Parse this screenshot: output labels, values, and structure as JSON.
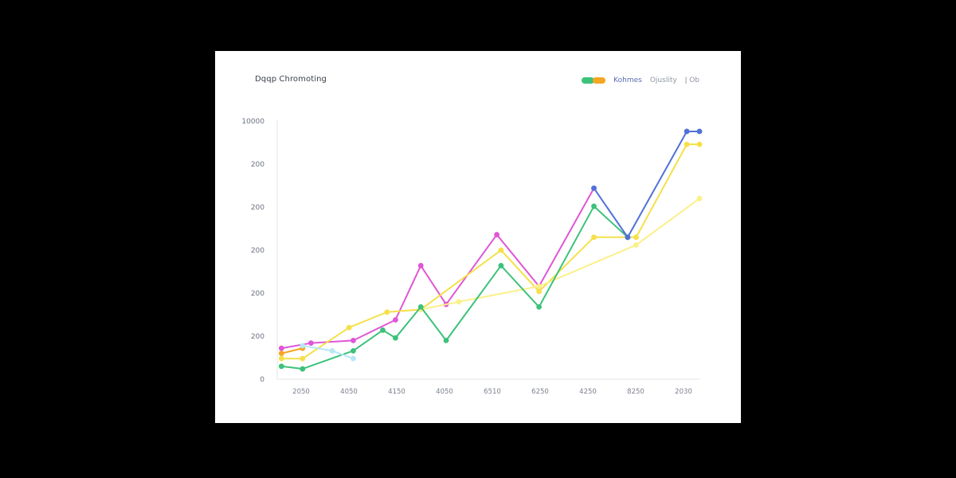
{
  "chart_data": {
    "type": "line",
    "title": "Dqqp Chromoting",
    "legend": {
      "placement": "top-right",
      "labels": [
        "Kohmes",
        "Ojuslity",
        "ǀ Ob"
      ]
    },
    "x_ticks": [
      "2050",
      "4050",
      "4150",
      "4050",
      "6510",
      "6250",
      "4250",
      "8250",
      "2030"
    ],
    "y_ticks": [
      "0",
      "200",
      "200",
      "200",
      "200",
      "200",
      "10000"
    ],
    "x_range": [
      0,
      1
    ],
    "y_range": [
      0,
      1
    ],
    "grid": false,
    "series": [
      {
        "color": "#e056d6",
        "x": [
          0.01,
          0.08,
          0.18,
          0.28,
          0.34,
          0.4,
          0.52,
          0.62,
          0.75
        ],
        "y": [
          0.12,
          0.14,
          0.15,
          0.23,
          0.44,
          0.29,
          0.56,
          0.36,
          0.74
        ]
      },
      {
        "color": "#f5a623",
        "x": [
          0.01,
          0.06
        ],
        "y": [
          0.1,
          0.12
        ]
      },
      {
        "color": "#f5e04a",
        "x": [
          0.01,
          0.06,
          0.17,
          0.26,
          0.34,
          0.53,
          0.62,
          0.75,
          0.85,
          0.97,
          1.0
        ],
        "y": [
          0.08,
          0.08,
          0.2,
          0.26,
          0.27,
          0.5,
          0.34,
          0.55,
          0.55,
          0.91,
          0.91
        ]
      },
      {
        "color": "#fbf08a",
        "x": [
          0.34,
          0.43,
          0.62,
          0.85,
          1.0
        ],
        "y": [
          0.27,
          0.3,
          0.36,
          0.52,
          0.7
        ]
      },
      {
        "color": "#3cc27a",
        "x": [
          0.01,
          0.06,
          0.18,
          0.25,
          0.28,
          0.34,
          0.4,
          0.53,
          0.62,
          0.75,
          0.83
        ],
        "y": [
          0.05,
          0.04,
          0.11,
          0.19,
          0.16,
          0.28,
          0.15,
          0.44,
          0.28,
          0.67,
          0.55
        ]
      },
      {
        "color": "#4f72d6",
        "x": [
          0.75,
          0.83,
          0.97,
          1.0
        ],
        "y": [
          0.74,
          0.55,
          0.96,
          0.96
        ]
      },
      {
        "color": "#b7e6f7",
        "x": [
          0.06,
          0.13,
          0.18
        ],
        "y": [
          0.13,
          0.11,
          0.08
        ]
      }
    ]
  },
  "colors": {
    "legend_swatch_a": "#3cc27a",
    "legend_swatch_b": "#f5a623"
  }
}
